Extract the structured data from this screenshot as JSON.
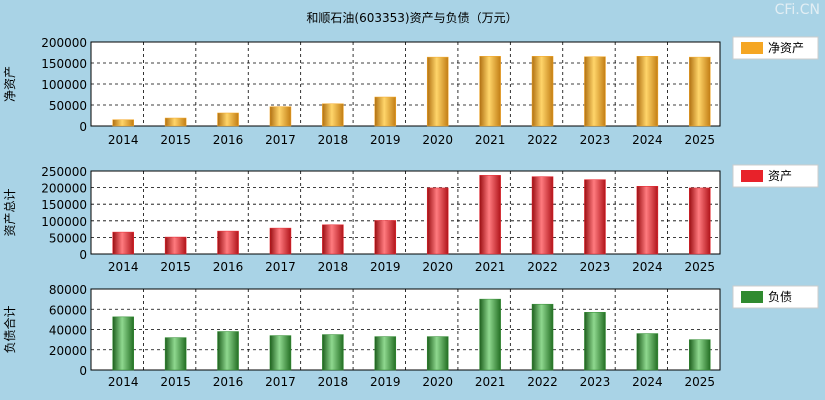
{
  "title": "和顺石油(603353)资产与负债（万元）",
  "brand": "CFi.CN",
  "colors": {
    "background": "#a9d3e6",
    "plot_bg": "#ffffff",
    "net_assets": "#f5a623",
    "total_assets": "#e8222a",
    "liabilities": "#2f8a2f"
  },
  "chart_data": [
    {
      "type": "bar",
      "categories": [
        "2014",
        "2015",
        "2016",
        "2017",
        "2018",
        "2019",
        "2020",
        "2021",
        "2022",
        "2023",
        "2024",
        "2025"
      ],
      "series": [
        {
          "name": "净资产",
          "values": [
            15000,
            19000,
            31000,
            46000,
            53000,
            69000,
            164000,
            166000,
            166000,
            165000,
            166000,
            164000
          ]
        }
      ],
      "ylabel": "净资产",
      "ylim": [
        0,
        200000
      ],
      "yticks": [
        0,
        50000,
        100000,
        150000,
        200000
      ],
      "legend": "right",
      "grid": true
    },
    {
      "type": "bar",
      "categories": [
        "2014",
        "2015",
        "2016",
        "2017",
        "2018",
        "2019",
        "2020",
        "2021",
        "2022",
        "2023",
        "2024",
        "2025"
      ],
      "series": [
        {
          "name": "资产",
          "values": [
            66000,
            51000,
            69000,
            78000,
            88000,
            101000,
            199000,
            237000,
            233000,
            224000,
            204000,
            199000
          ]
        }
      ],
      "ylabel": "资产总计",
      "ylim": [
        0,
        250000
      ],
      "yticks": [
        0,
        50000,
        100000,
        150000,
        200000,
        250000
      ],
      "legend": "right",
      "grid": true
    },
    {
      "type": "bar",
      "categories": [
        "2014",
        "2015",
        "2016",
        "2017",
        "2018",
        "2019",
        "2020",
        "2021",
        "2022",
        "2023",
        "2024",
        "2025"
      ],
      "series": [
        {
          "name": "负债",
          "values": [
            52500,
            32000,
            38000,
            34000,
            35000,
            33000,
            33000,
            70000,
            65000,
            57000,
            36000,
            30000
          ]
        }
      ],
      "ylabel": "负债合计",
      "ylim": [
        0,
        80000
      ],
      "yticks": [
        0,
        20000,
        40000,
        60000,
        80000
      ],
      "legend": "right",
      "grid": true
    }
  ]
}
